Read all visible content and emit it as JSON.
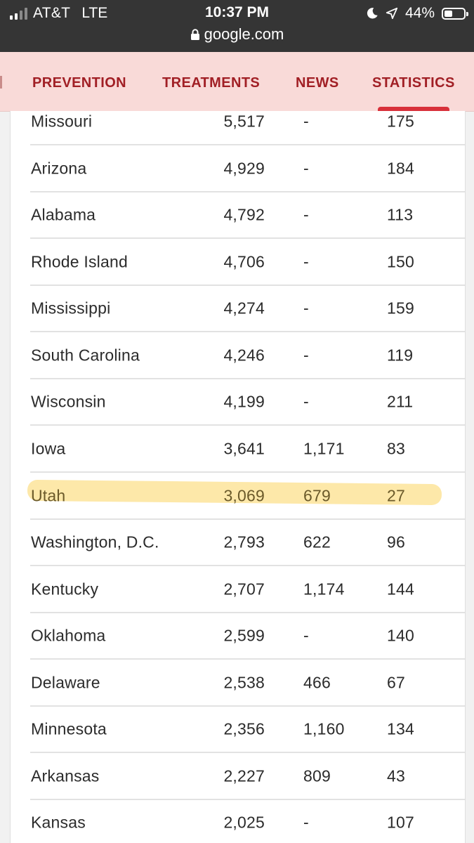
{
  "status_bar": {
    "carrier": "AT&T",
    "network": "LTE",
    "time": "10:37 PM",
    "battery_percent": "44%",
    "battery_level": 0.44,
    "url": "google.com",
    "icons": [
      "signal-icon",
      "moon-icon",
      "location-arrow-icon",
      "battery-icon",
      "lock-icon"
    ]
  },
  "nav": {
    "tabs": [
      {
        "label": "PREVENTION",
        "active": false
      },
      {
        "label": "TREATMENTS",
        "active": false
      },
      {
        "label": "NEWS",
        "active": false
      },
      {
        "label": "STATISTICS",
        "active": true
      }
    ],
    "accent_color": "#d8303a",
    "text_color": "#a11f25"
  },
  "table": {
    "highlight_color": "#fde49a",
    "rows": [
      {
        "name": "Missouri",
        "cases": "5,517",
        "recovered": "-",
        "deaths": "175"
      },
      {
        "name": "Arizona",
        "cases": "4,929",
        "recovered": "-",
        "deaths": "184"
      },
      {
        "name": "Alabama",
        "cases": "4,792",
        "recovered": "-",
        "deaths": "113"
      },
      {
        "name": "Rhode Island",
        "cases": "4,706",
        "recovered": "-",
        "deaths": "150"
      },
      {
        "name": "Mississippi",
        "cases": "4,274",
        "recovered": "-",
        "deaths": "159"
      },
      {
        "name": "South Carolina",
        "cases": "4,246",
        "recovered": "-",
        "deaths": "119"
      },
      {
        "name": "Wisconsin",
        "cases": "4,199",
        "recovered": "-",
        "deaths": "211"
      },
      {
        "name": "Iowa",
        "cases": "3,641",
        "recovered": "1,171",
        "deaths": "83"
      },
      {
        "name": "Utah",
        "cases": "3,069",
        "recovered": "679",
        "deaths": "27",
        "highlighted": true
      },
      {
        "name": "Washington, D.C.",
        "cases": "2,793",
        "recovered": "622",
        "deaths": "96"
      },
      {
        "name": "Kentucky",
        "cases": "2,707",
        "recovered": "1,174",
        "deaths": "144"
      },
      {
        "name": "Oklahoma",
        "cases": "2,599",
        "recovered": "-",
        "deaths": "140"
      },
      {
        "name": "Delaware",
        "cases": "2,538",
        "recovered": "466",
        "deaths": "67"
      },
      {
        "name": "Minnesota",
        "cases": "2,356",
        "recovered": "1,160",
        "deaths": "134"
      },
      {
        "name": "Arkansas",
        "cases": "2,227",
        "recovered": "809",
        "deaths": "43"
      },
      {
        "name": "Kansas",
        "cases": "2,025",
        "recovered": "-",
        "deaths": "107"
      }
    ]
  }
}
